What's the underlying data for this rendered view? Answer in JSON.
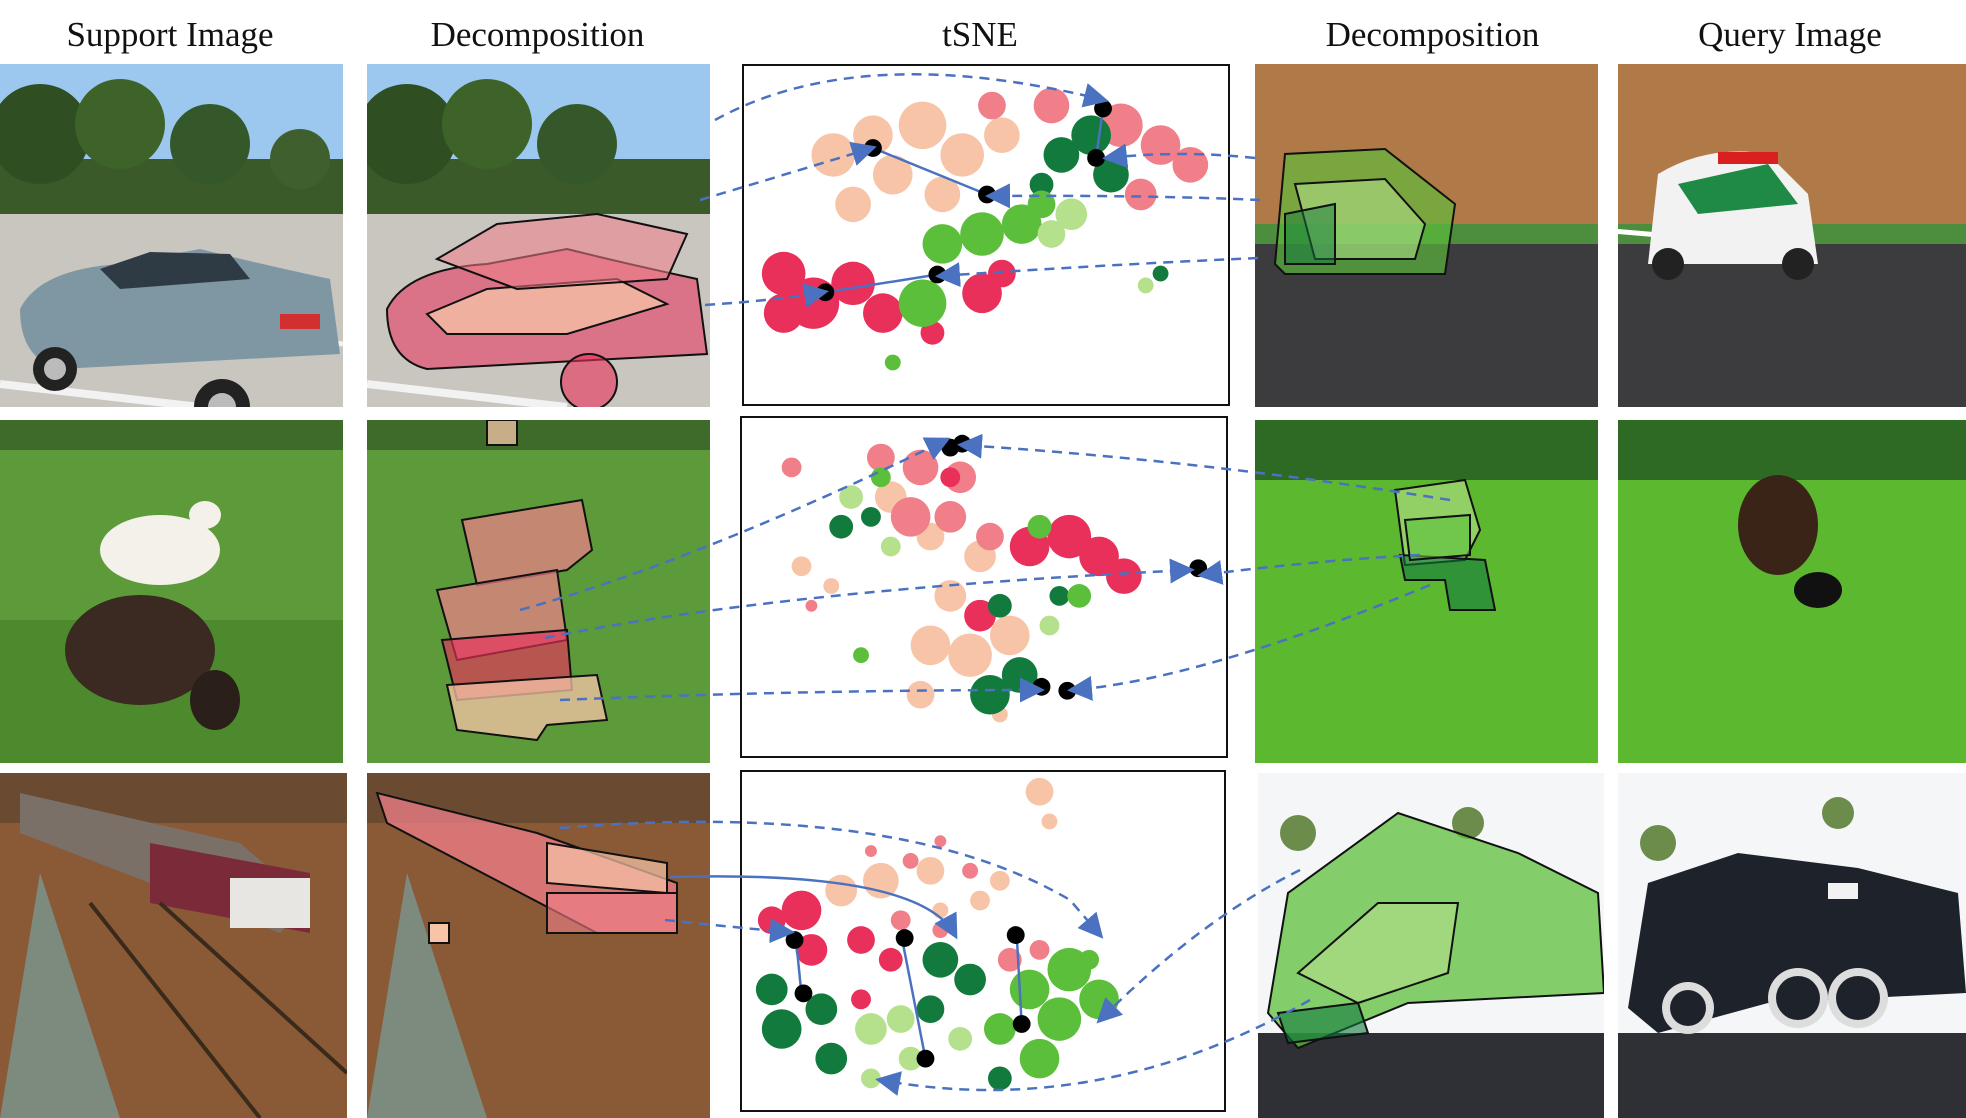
{
  "columns": {
    "support": "Support Image",
    "decomposition_left": "Decomposition",
    "tsne": "tSNE",
    "decomposition_right": "Decomposition",
    "query": "Query Image"
  },
  "rows": [
    {
      "subject": "car"
    },
    {
      "subject": "sheep"
    },
    {
      "subject": "train"
    }
  ],
  "colors": {
    "support_part_dark": "#e8305a",
    "support_part_mid": "#f07f8a",
    "support_part_light": "#f7c4a8",
    "query_part_dark": "#137a3e",
    "query_part_mid": "#5cbf3b",
    "query_part_light": "#b5e08c",
    "arrow_dashed": "#4a72c0",
    "arrow_solid": "#4a72c0",
    "centroid": "#000000"
  }
}
